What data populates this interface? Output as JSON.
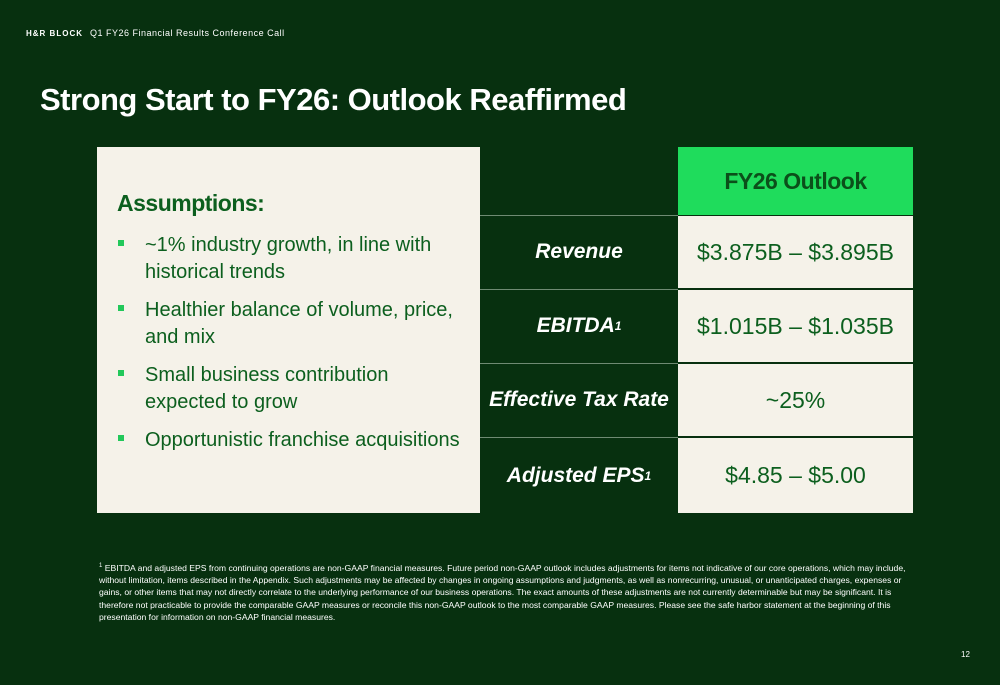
{
  "header": {
    "brand": "H&R BLOCK",
    "subtitle": "Q1 FY26 Financial Results Conference Call"
  },
  "title": "Strong Start to FY26: Outlook Reaffirmed",
  "assumptions": {
    "heading": "Assumptions:",
    "items": [
      "~1% industry growth, in line with historical trends",
      "Healthier balance of volume, price, and mix",
      "Small business contribution expected to grow",
      "Opportunistic franchise acquisitions"
    ]
  },
  "outlook_table": {
    "column_header": "FY26 Outlook",
    "rows": [
      {
        "label": "Revenue",
        "sup": "",
        "value": "$3.875B – $3.895B"
      },
      {
        "label": "EBITDA",
        "sup": "1",
        "value": "$1.015B – $1.035B"
      },
      {
        "label": "Effective Tax Rate",
        "sup": "",
        "value": "~25%"
      },
      {
        "label": "Adjusted EPS",
        "sup": "1",
        "value": "$4.85 – $5.00"
      }
    ]
  },
  "footnote": {
    "marker": "1",
    "text": "EBITDA and adjusted EPS from continuing operations are non-GAAP financial measures. Future period non-GAAP outlook includes adjustments for items not indicative of our core operations, which may include, without limitation, items described in the Appendix. Such adjustments may be affected by changes in ongoing assumptions and judgments, as well as nonrecurring, unusual, or unanticipated charges, expenses or gains, or other items that may not directly correlate to the underlying performance of our business operations. The exact amounts of these adjustments are not currently determinable but may be significant. It is therefore not practicable to provide the comparable GAAP measures or reconcile this non-GAAP outlook to the most comparable GAAP measures. Please see the safe harbor statement at the beginning of this presentation for information on non-GAAP financial measures."
  },
  "page_number": "12",
  "colors": {
    "background": "#07300f",
    "accent_green": "#1fdc5c",
    "dark_green_text": "#0c5f1e",
    "panel_cream": "#f5f2e9"
  }
}
